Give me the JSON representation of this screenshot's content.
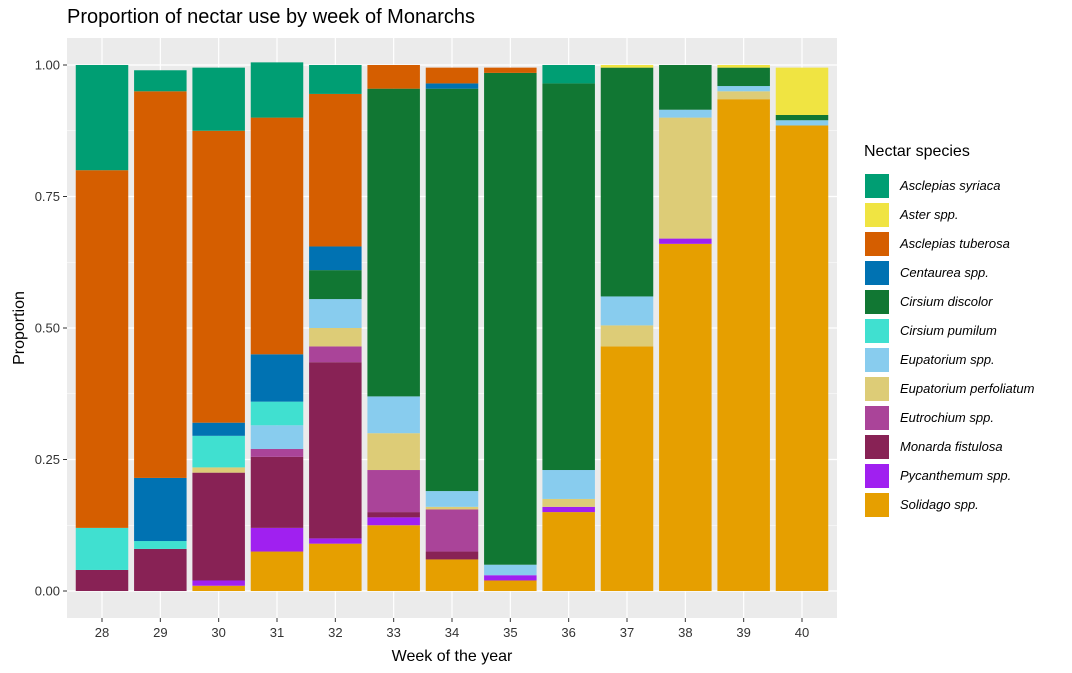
{
  "chart_data": {
    "type": "bar",
    "stacked": true,
    "title": "Proportion of nectar use by week of Monarchs",
    "xlabel": "Week of the year",
    "ylabel": "Proportion",
    "ylim": [
      0,
      1
    ],
    "yticks": [
      "0.00",
      "0.25",
      "0.50",
      "0.75",
      "1.00"
    ],
    "categories": [
      "28",
      "29",
      "30",
      "31",
      "32",
      "33",
      "34",
      "35",
      "36",
      "37",
      "38",
      "39",
      "40"
    ],
    "legend_title": "Nectar species",
    "legend_position": "right",
    "grid": true,
    "series": [
      {
        "name": "Asclepias syriaca",
        "color": "#009E73",
        "values": [
          0.2,
          0.04,
          0.12,
          0.105,
          0.055,
          0.0,
          0.0,
          0.0,
          0.035,
          0.0,
          0.0,
          0.0,
          0.0
        ]
      },
      {
        "name": "Aster spp.",
        "color": "#F0E442",
        "values": [
          0.0,
          0.0,
          0.0,
          0.0,
          0.0,
          0.0,
          0.0,
          0.0,
          0.0,
          0.005,
          0.0,
          0.005,
          0.09
        ]
      },
      {
        "name": "Asclepias tuberosa",
        "color": "#D55E00",
        "values": [
          0.68,
          0.735,
          0.555,
          0.45,
          0.29,
          0.045,
          0.03,
          0.01,
          0.0,
          0.0,
          0.0,
          0.0,
          0.0
        ]
      },
      {
        "name": "Centaurea spp.",
        "color": "#0072B2",
        "values": [
          0.0,
          0.12,
          0.025,
          0.09,
          0.045,
          0.0,
          0.01,
          0.0,
          0.0,
          0.0,
          0.0,
          0.0,
          0.0
        ]
      },
      {
        "name": "Cirsium discolor",
        "color": "#117733",
        "values": [
          0.0,
          0.0,
          0.0,
          0.0,
          0.055,
          0.585,
          0.765,
          0.935,
          0.735,
          0.435,
          0.085,
          0.035,
          0.01
        ]
      },
      {
        "name": "Cirsium pumilum",
        "color": "#40E0D0",
        "values": [
          0.08,
          0.015,
          0.06,
          0.045,
          0.0,
          0.0,
          0.0,
          0.0,
          0.0,
          0.0,
          0.0,
          0.0,
          0.0
        ]
      },
      {
        "name": "Eupatorium spp.",
        "color": "#88CCEE",
        "values": [
          0.0,
          0.0,
          0.0,
          0.045,
          0.055,
          0.07,
          0.03,
          0.02,
          0.055,
          0.055,
          0.015,
          0.01,
          0.01
        ]
      },
      {
        "name": "Eupatorium perfoliatum",
        "color": "#DDCC77",
        "values": [
          0.0,
          0.0,
          0.01,
          0.0,
          0.035,
          0.07,
          0.005,
          0.0,
          0.015,
          0.04,
          0.23,
          0.015,
          0.0
        ]
      },
      {
        "name": "Eutrochium spp.",
        "color": "#AA4499",
        "values": [
          0.0,
          0.0,
          0.0,
          0.015,
          0.03,
          0.08,
          0.08,
          0.0,
          0.0,
          0.0,
          0.0,
          0.0,
          0.0
        ]
      },
      {
        "name": "Monarda fistulosa",
        "color": "#882255",
        "values": [
          0.04,
          0.08,
          0.205,
          0.135,
          0.335,
          0.01,
          0.015,
          0.0,
          0.0,
          0.0,
          0.0,
          0.0,
          0.0
        ]
      },
      {
        "name": "Pycanthemum spp.",
        "color": "#A020F0",
        "values": [
          0.0,
          0.0,
          0.01,
          0.045,
          0.01,
          0.015,
          0.0,
          0.01,
          0.01,
          0.0,
          0.01,
          0.0,
          0.0
        ]
      },
      {
        "name": "Solidago spp.",
        "color": "#E69F00",
        "values": [
          0.0,
          0.0,
          0.01,
          0.075,
          0.09,
          0.125,
          0.06,
          0.02,
          0.15,
          0.465,
          0.66,
          0.935,
          0.885
        ]
      }
    ]
  }
}
